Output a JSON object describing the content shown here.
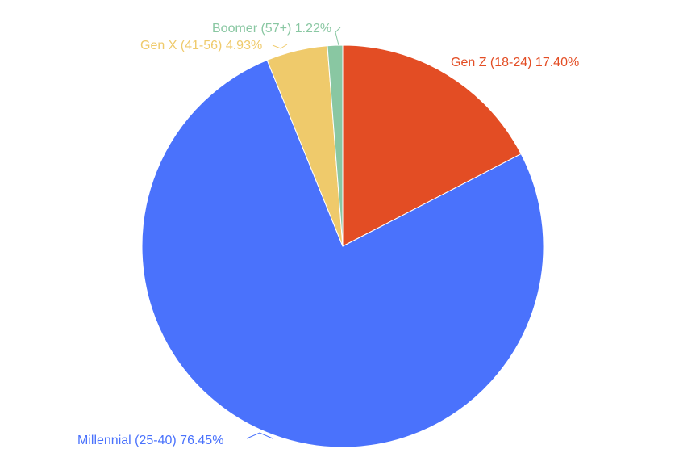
{
  "chart_data": {
    "type": "pie",
    "title": "",
    "labels": [
      "Gen Z (18-24)",
      "Millennial (25-40)",
      "Gen X (41-56)",
      "Boomer (57+)"
    ],
    "values": [
      17.4,
      76.45,
      4.93,
      1.22
    ],
    "value_labels": [
      "17.40%",
      "76.45%",
      "4.93%",
      "1.22%"
    ],
    "colors": [
      "#e34d24",
      "#4a72fc",
      "#efca6b",
      "#89c7a2"
    ],
    "start_angle_deg": 0,
    "direction": "clockwise",
    "legend": "none"
  }
}
